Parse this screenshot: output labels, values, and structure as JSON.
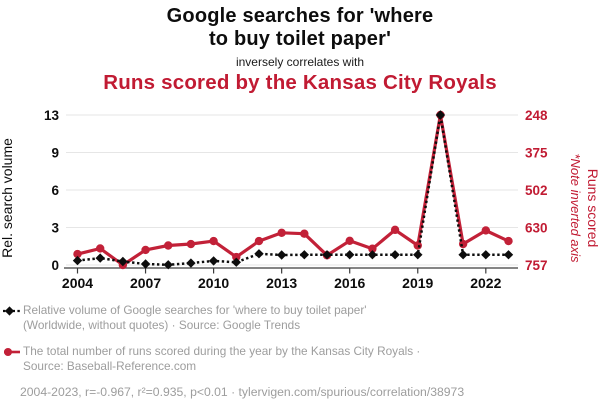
{
  "title": {
    "black_line1": "Google searches for 'where",
    "black_line2": "to buy toilet paper'",
    "connector": "inversely correlates with",
    "red_title": "Runs scored by the Kansas City Royals"
  },
  "colors": {
    "accent_red": "#c11b33",
    "series_red": "#c22138",
    "series_black": "#0d0d0d",
    "legend_gray": "#9d9d9d",
    "grid_gray": "#e6e6e6",
    "axis_gray": "#3c3c3c"
  },
  "chart_data": {
    "type": "line",
    "title": "Google searches for 'where to buy toilet paper' inversely correlates with Runs scored by the Kansas City Royals",
    "x": [
      2004,
      2005,
      2006,
      2007,
      2008,
      2009,
      2010,
      2011,
      2012,
      2013,
      2014,
      2015,
      2016,
      2017,
      2018,
      2019,
      2020,
      2021,
      2022,
      2023
    ],
    "x_ticks": [
      2004,
      2007,
      2010,
      2013,
      2016,
      2019,
      2022
    ],
    "grid": true,
    "legend_position": "bottom",
    "series": [
      {
        "name": "Relative volume of Google searches for 'where to buy toilet paper'",
        "axis": "left",
        "marker": "diamond",
        "line": "dotted",
        "color": "#0d0d0d",
        "values": [
          0.35,
          0.55,
          0.28,
          0.08,
          0.02,
          0.15,
          0.33,
          0.22,
          0.9,
          0.8,
          0.82,
          0.82,
          0.82,
          0.82,
          0.82,
          0.82,
          13,
          0.82,
          0.82,
          0.82
        ]
      },
      {
        "name": "Runs scored by the Kansas City Royals",
        "axis": "right",
        "marker": "circle",
        "line": "solid",
        "color": "#c22138",
        "values": [
          720,
          701,
          757,
          706,
          691,
          686,
          676,
          730,
          676,
          648,
          651,
          724,
          675,
          702,
          638,
          691,
          248,
          686,
          640,
          676
        ]
      }
    ],
    "left_axis": {
      "label": "Rel. search volume",
      "ticks": [
        0,
        3,
        6,
        9,
        13
      ],
      "color": "#0d0d0d"
    },
    "right_axis": {
      "label": "Runs scored",
      "note": "*Note inverted axis",
      "ticks": [
        757,
        630,
        502,
        375,
        248
      ],
      "inverted": true,
      "color": "#c11b33"
    }
  },
  "legend": {
    "items": [
      {
        "icon": "black-diamond-dotted-line",
        "lines": [
          "Relative volume of Google searches for 'where to buy toilet paper'",
          "(Worldwide, without quotes) · Source: Google Trends"
        ]
      },
      {
        "icon": "red-circle-solid-line",
        "lines": [
          "The total number of runs scored during the year by the Kansas City Royals ·",
          "Source: Baseball-Reference.com"
        ]
      }
    ]
  },
  "footer": {
    "text": "2004-2023, r=-0.967, r²=0.935, p<0.01 · tylervigen.com/spurious/correlation/38973"
  }
}
